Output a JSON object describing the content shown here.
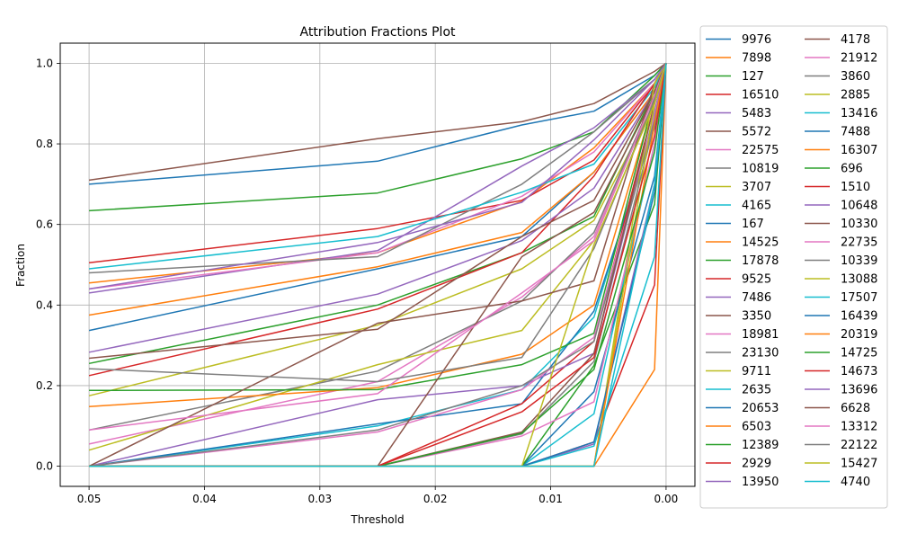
{
  "chart_data": {
    "type": "line",
    "title": "Attribution Fractions Plot",
    "xlabel": "Threshold",
    "ylabel": "Fraction",
    "xlim": [
      0.0525,
      -0.0025
    ],
    "ylim": [
      -0.05,
      1.05
    ],
    "x_inverted": true,
    "grid": true,
    "legend_position": "outside-right",
    "legend_columns": 2,
    "x": [
      0.05,
      0.025,
      0.0125,
      0.00625,
      0.001,
      0.0
    ],
    "x_ticks": [
      0.05,
      0.04,
      0.03,
      0.02,
      0.01,
      0.0
    ],
    "x_tick_labels": [
      "0.05",
      "0.04",
      "0.03",
      "0.02",
      "0.01",
      "0.00"
    ],
    "y_ticks": [
      0.0,
      0.2,
      0.4,
      0.6,
      0.8,
      1.0
    ],
    "y_tick_labels": [
      "0.0",
      "0.2",
      "0.4",
      "0.6",
      "0.8",
      "1.0"
    ],
    "palette": [
      "#1f77b4",
      "#ff7f0e",
      "#2ca02c",
      "#d62728",
      "#9467bd",
      "#8c564b",
      "#e377c2",
      "#7f7f7f",
      "#bcbd22",
      "#17becf"
    ],
    "series": [
      {
        "name": "9976",
        "values": [
          0.7,
          0.757,
          0.847,
          0.881,
          0.97,
          1.0
        ]
      },
      {
        "name": "7898",
        "values": [
          0.455,
          0.53,
          0.657,
          0.79,
          0.95,
          1.0
        ]
      },
      {
        "name": "127",
        "values": [
          0.634,
          0.678,
          0.763,
          0.83,
          0.97,
          1.0
        ]
      },
      {
        "name": "16510",
        "values": [
          0.505,
          0.59,
          0.66,
          0.76,
          0.95,
          1.0
        ]
      },
      {
        "name": "5483",
        "values": [
          0.43,
          0.535,
          0.745,
          0.84,
          0.96,
          1.0
        ]
      },
      {
        "name": "5572",
        "values": [
          0.71,
          0.813,
          0.855,
          0.9,
          0.98,
          1.0
        ]
      },
      {
        "name": "22575",
        "values": [
          0.44,
          0.53,
          0.67,
          0.78,
          0.95,
          1.0
        ]
      },
      {
        "name": "10819",
        "values": [
          0.48,
          0.52,
          0.7,
          0.83,
          0.96,
          1.0
        ]
      },
      {
        "name": "3707",
        "values": [
          0.175,
          0.35,
          0.49,
          0.61,
          0.9,
          1.0
        ]
      },
      {
        "name": "4165",
        "values": [
          0.49,
          0.57,
          0.68,
          0.75,
          0.94,
          1.0
        ]
      },
      {
        "name": "167",
        "values": [
          0.337,
          0.49,
          0.57,
          0.73,
          0.93,
          1.0
        ]
      },
      {
        "name": "14525",
        "values": [
          0.375,
          0.495,
          0.58,
          0.73,
          0.93,
          1.0
        ]
      },
      {
        "name": "17878",
        "values": [
          0.255,
          0.4,
          0.53,
          0.62,
          0.93,
          1.0
        ]
      },
      {
        "name": "9525",
        "values": [
          0.225,
          0.39,
          0.53,
          0.72,
          0.95,
          1.0
        ]
      },
      {
        "name": "7486",
        "values": [
          0.283,
          0.427,
          0.56,
          0.69,
          0.93,
          1.0
        ]
      },
      {
        "name": "3350",
        "values": [
          0.268,
          0.34,
          0.57,
          0.66,
          0.93,
          1.0
        ]
      },
      {
        "name": "18981",
        "values": [
          0.055,
          0.21,
          0.42,
          0.57,
          0.92,
          1.0
        ]
      },
      {
        "name": "23130",
        "values": [
          0.09,
          0.236,
          0.41,
          0.58,
          0.92,
          1.0
        ]
      },
      {
        "name": "9711",
        "values": [
          0.04,
          0.252,
          0.337,
          0.56,
          0.92,
          1.0
        ]
      },
      {
        "name": "2635",
        "values": [
          0.0,
          0.1,
          0.19,
          0.37,
          0.86,
          1.0
        ]
      },
      {
        "name": "20653",
        "values": [
          0.0,
          0.105,
          0.155,
          0.385,
          0.84,
          1.0
        ]
      },
      {
        "name": "6503",
        "values": [
          0.148,
          0.195,
          0.278,
          0.4,
          0.91,
          1.0
        ]
      },
      {
        "name": "12389",
        "values": [
          0.188,
          0.19,
          0.252,
          0.33,
          0.92,
          1.0
        ]
      },
      {
        "name": "2929",
        "values": [
          0.0,
          0.0,
          0.155,
          0.31,
          0.9,
          1.0
        ]
      },
      {
        "name": "13950",
        "values": [
          0.0,
          0.165,
          0.2,
          0.28,
          0.88,
          1.0
        ]
      },
      {
        "name": "4178",
        "values": [
          0.0,
          0.355,
          0.41,
          0.46,
          0.95,
          1.0
        ]
      },
      {
        "name": "21912",
        "values": [
          0.0,
          0.085,
          0.19,
          0.32,
          0.87,
          1.0
        ]
      },
      {
        "name": "3860",
        "values": [
          0.0,
          0.09,
          0.2,
          0.31,
          0.86,
          1.0
        ]
      },
      {
        "name": "2885",
        "values": [
          0.0,
          0.0,
          0.0,
          0.0,
          0.95,
          1.0
        ]
      },
      {
        "name": "13416",
        "values": [
          0.0,
          0.0,
          0.0,
          0.13,
          0.8,
          1.0
        ]
      },
      {
        "name": "7488",
        "values": [
          0.0,
          0.0,
          0.0,
          0.185,
          0.72,
          1.0
        ]
      },
      {
        "name": "16307",
        "values": [
          0.0,
          0.0,
          0.0,
          0.0,
          0.24,
          1.0
        ]
      },
      {
        "name": "696",
        "values": [
          0.0,
          0.0,
          0.0,
          0.25,
          0.65,
          1.0
        ]
      },
      {
        "name": "1510",
        "values": [
          0.0,
          0.0,
          0.0,
          0.06,
          0.45,
          1.0
        ]
      },
      {
        "name": "10648",
        "values": [
          0.0,
          0.0,
          0.0,
          0.055,
          0.7,
          1.0
        ]
      },
      {
        "name": "10330",
        "values": [
          0.0,
          0.0,
          0.085,
          0.28,
          0.9,
          1.0
        ]
      },
      {
        "name": "22735",
        "values": [
          0.0,
          0.0,
          0.075,
          0.16,
          0.8,
          1.0
        ]
      },
      {
        "name": "10339",
        "values": [
          0.0,
          0.0,
          0.08,
          0.26,
          0.85,
          1.0
        ]
      },
      {
        "name": "13088",
        "values": [
          0.0,
          0.0,
          0.0,
          0.0,
          0.9,
          1.0
        ]
      },
      {
        "name": "17507",
        "values": [
          0.0,
          0.0,
          0.0,
          0.05,
          0.52,
          1.0
        ]
      },
      {
        "name": "16439",
        "values": [
          0.0,
          0.0,
          0.0,
          0.06,
          0.68,
          1.0
        ]
      },
      {
        "name": "20319",
        "values": [
          0.0,
          0.0,
          0.0,
          0.0,
          0.85,
          1.0
        ]
      },
      {
        "name": "14725",
        "values": [
          0.0,
          0.0,
          0.082,
          0.24,
          0.78,
          1.0
        ]
      },
      {
        "name": "14673",
        "values": [
          0.0,
          0.0,
          0.135,
          0.27,
          0.82,
          1.0
        ]
      },
      {
        "name": "13696",
        "values": [
          0.44,
          0.555,
          0.655,
          0.81,
          0.96,
          1.0
        ]
      },
      {
        "name": "6628",
        "values": [
          0.0,
          0.0,
          0.52,
          0.63,
          0.92,
          1.0
        ]
      },
      {
        "name": "13312",
        "values": [
          0.09,
          0.18,
          0.43,
          0.56,
          0.92,
          1.0
        ]
      },
      {
        "name": "22122",
        "values": [
          0.242,
          0.21,
          0.27,
          0.54,
          0.91,
          1.0
        ]
      },
      {
        "name": "15427",
        "values": [
          0.0,
          0.0,
          0.0,
          0.55,
          0.9,
          1.0
        ]
      },
      {
        "name": "4740",
        "values": [
          0.0,
          0.0,
          0.0,
          0.0,
          0.7,
          1.0
        ]
      }
    ]
  }
}
